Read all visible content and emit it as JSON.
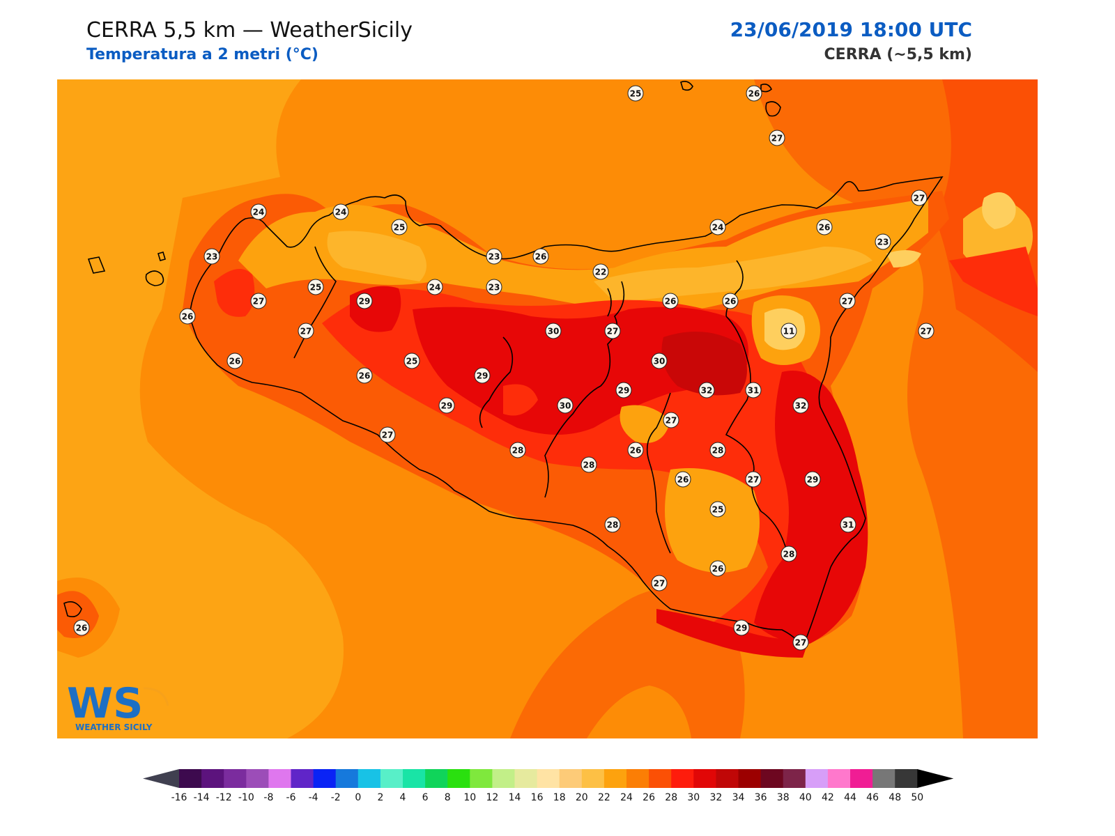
{
  "header": {
    "title": "CERRA 5,5 km — WeatherSicily",
    "subtitle": "Temperatura a 2 metri (°C)",
    "datetime": "23/06/2019 18:00 UTC",
    "model": "CERRA (~5,5 km)"
  },
  "logo": {
    "initials": "WS",
    "name": "WEATHER SICILY"
  },
  "station_values": [
    25,
    26,
    27,
    27,
    24,
    24,
    25,
    26,
    23,
    23,
    24,
    26,
    23,
    24,
    22,
    25,
    23,
    27,
    29,
    26,
    27,
    26,
    26,
    27,
    30,
    27,
    11,
    27,
    25,
    30,
    26,
    29,
    26,
    32,
    31,
    32,
    29,
    30,
    29,
    27,
    28,
    28,
    26,
    28,
    26,
    27,
    29,
    27,
    25,
    31,
    28,
    28,
    26,
    27,
    29,
    27,
    26
  ],
  "colorbar": {
    "labels": [
      "-16",
      "-14",
      "-12",
      "-10",
      "-8",
      "-6",
      "-4",
      "-2",
      "0",
      "2",
      "4",
      "6",
      "8",
      "10",
      "12",
      "14",
      "16",
      "18",
      "20",
      "22",
      "24",
      "26",
      "28",
      "30",
      "32",
      "34",
      "36",
      "38",
      "40",
      "42",
      "44",
      "46",
      "48",
      "50"
    ],
    "colors": [
      "#3d0a4e",
      "#5c137d",
      "#7b2c9e",
      "#9c4db8",
      "#df77ee",
      "#6025c8",
      "#0a23f5",
      "#1679dc",
      "#18c2e6",
      "#58efc8",
      "#19e4a6",
      "#10d45a",
      "#2ae00f",
      "#7fe83d",
      "#c2ef88",
      "#e6ea9e",
      "#ffe3a4",
      "#fdcb78",
      "#fdc045",
      "#fda20e",
      "#fb7e05",
      "#fb5005",
      "#fe1c0c",
      "#e10707",
      "#c00707",
      "#9c0000",
      "#6d0720",
      "#7d2449",
      "#d79ef8",
      "#ff78cc",
      "#f01d94",
      "#777777",
      "#373737"
    ],
    "min_color": "#404050",
    "max_color": "#000000"
  },
  "map_colors": {
    "sea_warm": "#fd8c06",
    "sea_cool": "#fda414",
    "t26": "#fb5b05",
    "t28": "#fe2d0a",
    "t30": "#e70707",
    "t32": "#c90707",
    "t22": "#fdb52b",
    "t18": "#fecf5e",
    "coast": "#000000"
  }
}
